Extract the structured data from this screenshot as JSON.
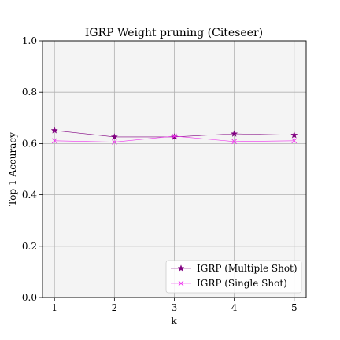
{
  "chart_data": {
    "type": "line",
    "title": "IGRP Weight pruning (Citeseer)",
    "xlabel": "k",
    "ylabel": "Top-1 Accuracy",
    "x": [
      1,
      2,
      3,
      4,
      5
    ],
    "xlim": [
      0.8,
      5.2
    ],
    "ylim": [
      0.0,
      1.0
    ],
    "xticks": [
      "1",
      "2",
      "3",
      "4",
      "5"
    ],
    "yticks": [
      "0.0",
      "0.2",
      "0.4",
      "0.6",
      "0.8",
      "1.0"
    ],
    "grid": true,
    "legend_position": "bottom-right",
    "plot_background": "#f4f4f4",
    "series": [
      {
        "name": "IGRP (Multiple Shot)",
        "values": [
          0.651,
          0.626,
          0.626,
          0.638,
          0.633
        ],
        "color": "#800080",
        "marker": "star"
      },
      {
        "name": "IGRP (Single Shot)",
        "values": [
          0.611,
          0.606,
          0.629,
          0.608,
          0.611
        ],
        "color": "#ee33ee",
        "marker": "x"
      }
    ]
  }
}
